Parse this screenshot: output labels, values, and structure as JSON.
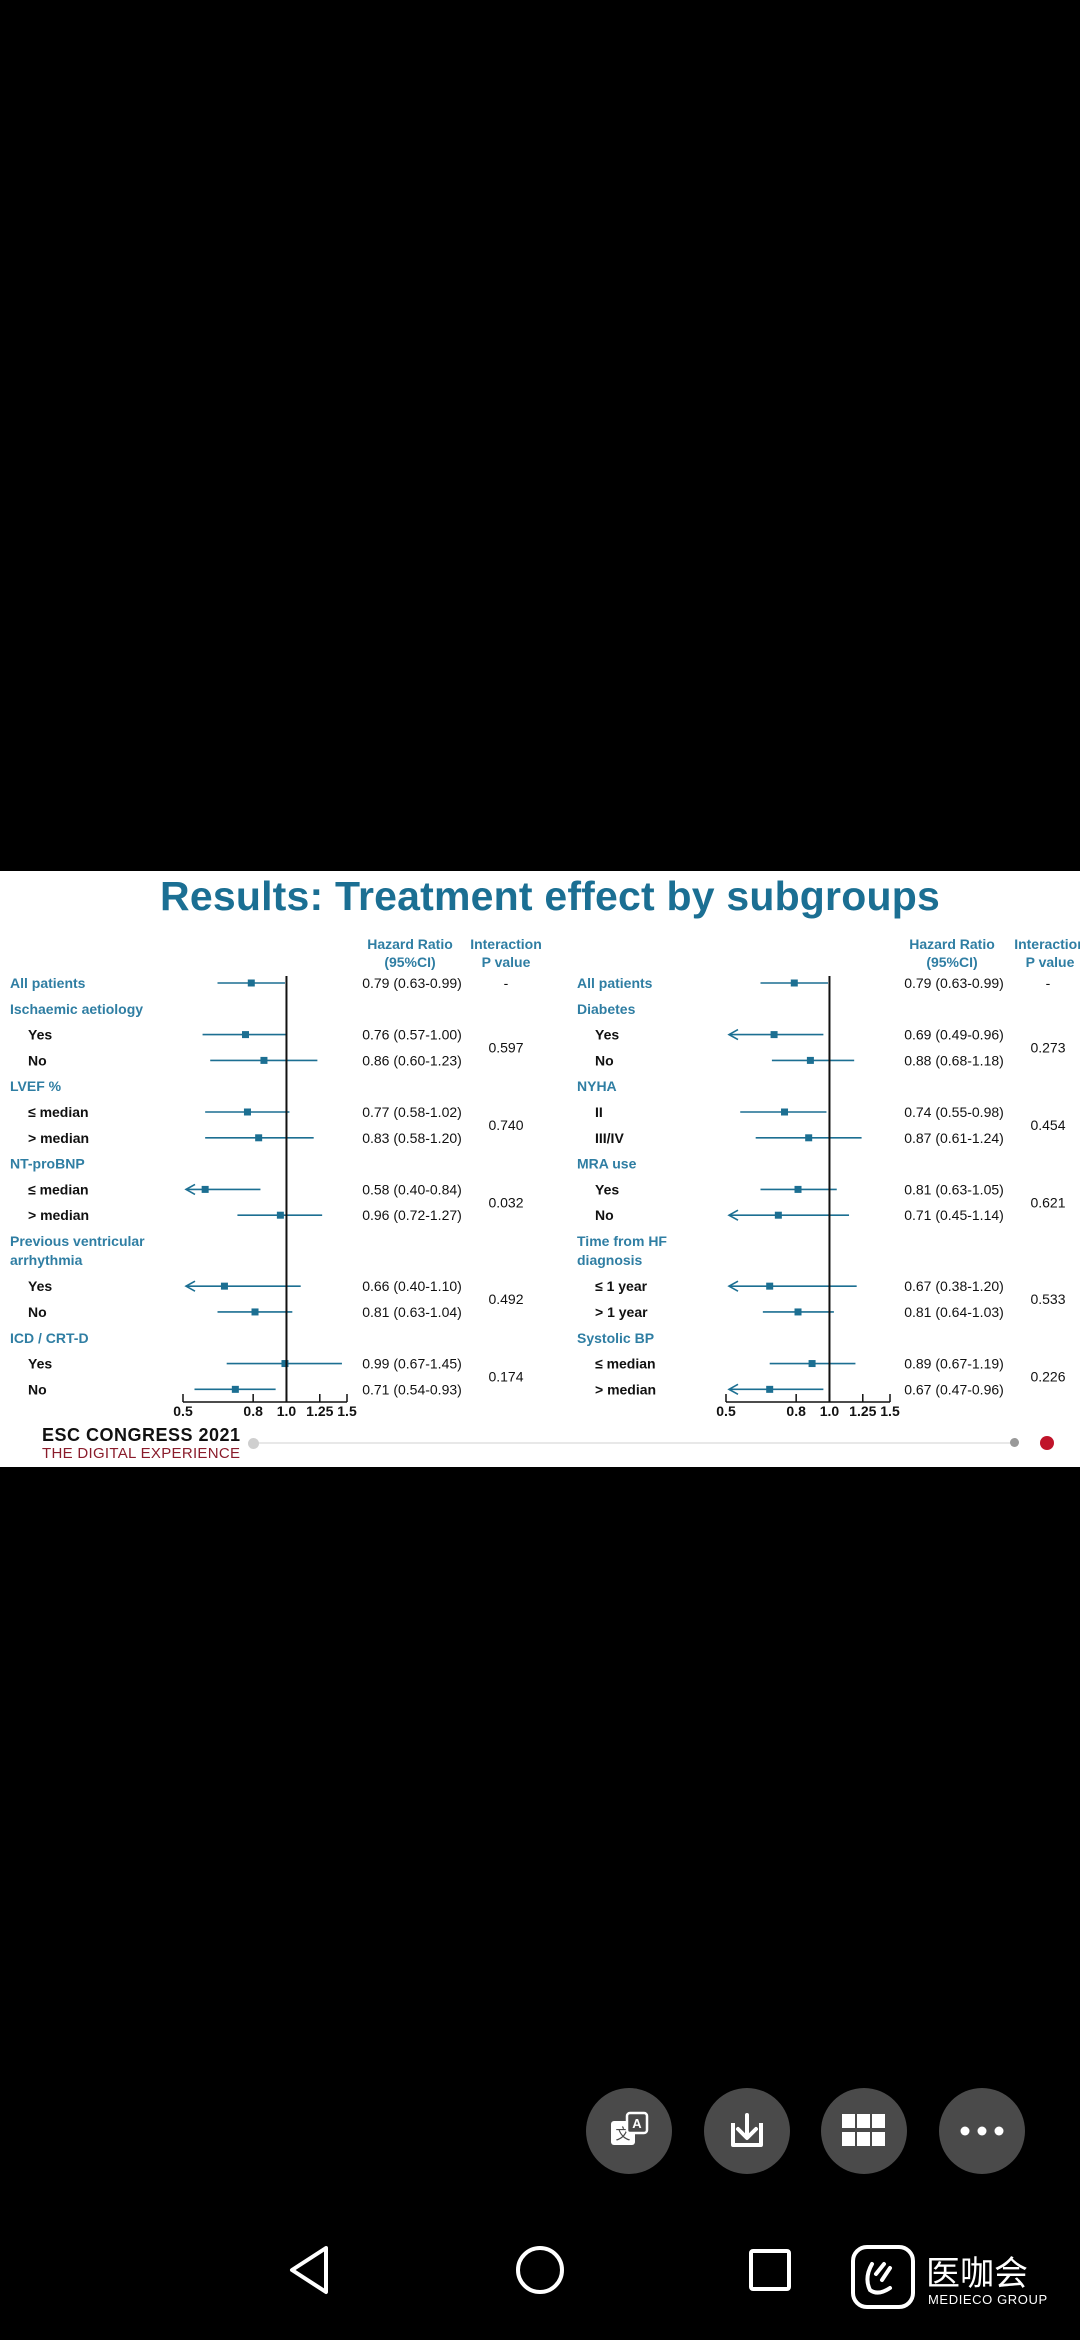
{
  "slide": {
    "title": "Results: Treatment effect by subgroups",
    "footer_brand": "ESC CONGRESS 2021",
    "footer_tagline": "THE DIGITAL EXPERIENCE"
  },
  "colors": {
    "accent": "#1b6f93",
    "header_text": "#2f7ea3",
    "plot_marker": "#1c6f92",
    "brand_red": "#c0142a"
  },
  "chart_data": [
    {
      "type": "forest",
      "x_scale": "log",
      "xlim": [
        0.5,
        1.5
      ],
      "ticks": [
        "0.5",
        "0.8",
        "1.0",
        "1.25",
        "1.5"
      ],
      "reference_line": 1.0,
      "headers": {
        "hr_line1": "Hazard Ratio",
        "hr_line2": "(95%CI)",
        "p_line1": "Interaction",
        "p_line2": "P value"
      },
      "rows": [
        {
          "kind": "overall",
          "label": "All patients",
          "hr": 0.79,
          "lo": 0.63,
          "hi": 0.99,
          "text": "0.79 (0.63-0.99)",
          "p": "-"
        },
        {
          "kind": "group",
          "label": "Ischaemic aetiology"
        },
        {
          "kind": "sub",
          "label": "Yes",
          "hr": 0.76,
          "lo": 0.57,
          "hi": 1.0,
          "text": "0.76 (0.57-1.00)",
          "p": "0.597"
        },
        {
          "kind": "sub",
          "label": "No",
          "hr": 0.86,
          "lo": 0.6,
          "hi": 1.23,
          "text": "0.86 (0.60-1.23)"
        },
        {
          "kind": "group",
          "label": "LVEF %"
        },
        {
          "kind": "sub",
          "label": "≤ median",
          "hr": 0.77,
          "lo": 0.58,
          "hi": 1.02,
          "text": "0.77 (0.58-1.02)",
          "p": "0.740"
        },
        {
          "kind": "sub",
          "label": "> median",
          "hr": 0.83,
          "lo": 0.58,
          "hi": 1.2,
          "text": "0.83 (0.58-1.20)"
        },
        {
          "kind": "group",
          "label": "NT-proBNP"
        },
        {
          "kind": "sub",
          "label": "≤ median",
          "hr": 0.58,
          "lo": 0.4,
          "hi": 0.84,
          "text": "0.58 (0.40-0.84)",
          "p": "0.032"
        },
        {
          "kind": "sub",
          "label": "> median",
          "hr": 0.96,
          "lo": 0.72,
          "hi": 1.27,
          "text": "0.96 (0.72-1.27)"
        },
        {
          "kind": "group2",
          "label": "Previous ventricular",
          "label2": "arrhythmia"
        },
        {
          "kind": "sub",
          "label": "Yes",
          "hr": 0.66,
          "lo": 0.4,
          "hi": 1.1,
          "text": "0.66 (0.40-1.10)",
          "p": "0.492"
        },
        {
          "kind": "sub",
          "label": "No",
          "hr": 0.81,
          "lo": 0.63,
          "hi": 1.04,
          "text": "0.81 (0.63-1.04)"
        },
        {
          "kind": "group",
          "label": "ICD / CRT-D"
        },
        {
          "kind": "sub",
          "label": "Yes",
          "hr": 0.99,
          "lo": 0.67,
          "hi": 1.45,
          "text": "0.99 (0.67-1.45)",
          "p": "0.174"
        },
        {
          "kind": "sub",
          "label": "No",
          "hr": 0.71,
          "lo": 0.54,
          "hi": 0.93,
          "text": "0.71 (0.54-0.93)"
        }
      ]
    },
    {
      "type": "forest",
      "x_scale": "log",
      "xlim": [
        0.5,
        1.5
      ],
      "ticks": [
        "0.5",
        "0.8",
        "1.0",
        "1.25",
        "1.5"
      ],
      "reference_line": 1.0,
      "headers": {
        "hr_line1": "Hazard Ratio",
        "hr_line2": "(95%CI)",
        "p_line1": "Interaction",
        "p_line2": "P value"
      },
      "rows": [
        {
          "kind": "overall",
          "label": "All patients",
          "hr": 0.79,
          "lo": 0.63,
          "hi": 0.99,
          "text": "0.79 (0.63-0.99)",
          "p": "-"
        },
        {
          "kind": "group",
          "label": "Diabetes"
        },
        {
          "kind": "sub",
          "label": "Yes",
          "hr": 0.69,
          "lo": 0.49,
          "hi": 0.96,
          "text": "0.69 (0.49-0.96)",
          "p": "0.273"
        },
        {
          "kind": "sub",
          "label": "No",
          "hr": 0.88,
          "lo": 0.68,
          "hi": 1.18,
          "text": "0.88 (0.68-1.18)"
        },
        {
          "kind": "group",
          "label": "NYHA"
        },
        {
          "kind": "sub",
          "label": "II",
          "hr": 0.74,
          "lo": 0.55,
          "hi": 0.98,
          "text": "0.74 (0.55-0.98)",
          "p": "0.454"
        },
        {
          "kind": "sub",
          "label": "III/IV",
          "hr": 0.87,
          "lo": 0.61,
          "hi": 1.24,
          "text": "0.87 (0.61-1.24)"
        },
        {
          "kind": "group",
          "label": "MRA use"
        },
        {
          "kind": "sub",
          "label": "Yes",
          "hr": 0.81,
          "lo": 0.63,
          "hi": 1.05,
          "text": "0.81 (0.63-1.05)",
          "p": "0.621"
        },
        {
          "kind": "sub",
          "label": "No",
          "hr": 0.71,
          "lo": 0.45,
          "hi": 1.14,
          "text": "0.71 (0.45-1.14)"
        },
        {
          "kind": "group2",
          "label": "Time from HF",
          "label2": "diagnosis"
        },
        {
          "kind": "sub",
          "label": "≤ 1 year",
          "hr": 0.67,
          "lo": 0.38,
          "hi": 1.2,
          "text": "0.67 (0.38-1.20)",
          "p": "0.533"
        },
        {
          "kind": "sub",
          "label": "> 1 year",
          "hr": 0.81,
          "lo": 0.64,
          "hi": 1.03,
          "text": "0.81 (0.64-1.03)"
        },
        {
          "kind": "group",
          "label": "Systolic BP"
        },
        {
          "kind": "sub",
          "label": "≤ median",
          "hr": 0.89,
          "lo": 0.67,
          "hi": 1.19,
          "text": "0.89 (0.67-1.19)",
          "p": "0.226"
        },
        {
          "kind": "sub",
          "label": "> median",
          "hr": 0.67,
          "lo": 0.47,
          "hi": 0.96,
          "text": "0.67 (0.47-0.96)"
        }
      ]
    }
  ],
  "toolbar": {
    "translate_icon": "translate-icon",
    "download_icon": "download-icon",
    "grid_icon": "grid-icon",
    "more_icon": "more-icon"
  },
  "navbar": {
    "back_icon": "back-triangle-icon",
    "home_icon": "home-circle-icon",
    "recent_icon": "recent-square-icon",
    "brand_cn": "医咖会",
    "brand_en": "MEDIECO GROUP"
  }
}
